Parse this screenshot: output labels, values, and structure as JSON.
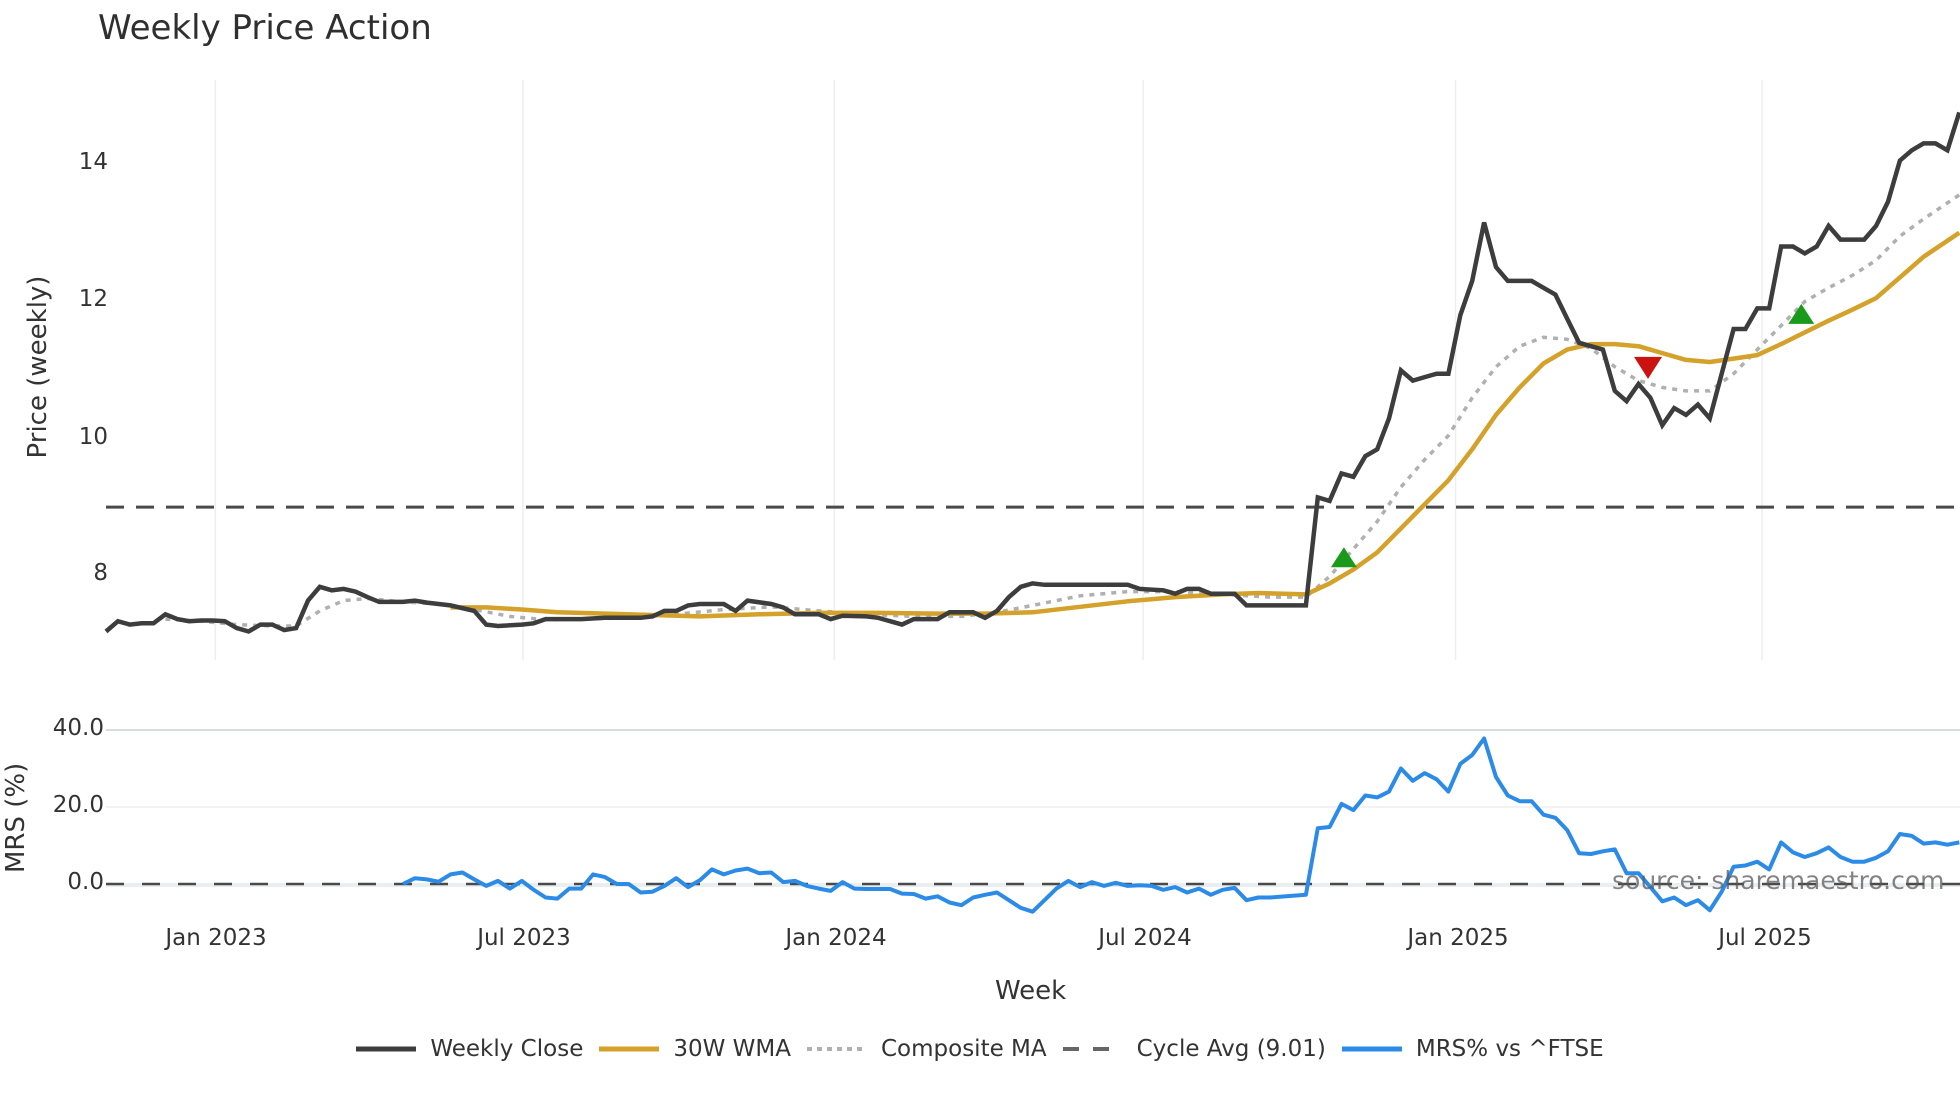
{
  "title": "Weekly Price Action",
  "price_axis": {
    "label": "Price (weekly)",
    "ticks": [
      "8",
      "10",
      "12",
      "14"
    ]
  },
  "mrs_axis": {
    "label": "MRS (%)",
    "ticks": [
      "0.0",
      "20.0",
      "40.0"
    ]
  },
  "x_axis": {
    "label": "Week",
    "ticks": [
      "Jan 2023",
      "Jul 2023",
      "Jan 2024",
      "Jul 2024",
      "Jan 2025",
      "Jul 2025"
    ]
  },
  "source": "source: sharemaestro.com",
  "legend": [
    {
      "label": "Weekly Close",
      "color": "#3d3d3d",
      "style": "solid"
    },
    {
      "label": "30W WMA",
      "color": "#d4a12a",
      "style": "solid"
    },
    {
      "label": "Composite MA",
      "color": "#b0b0b0",
      "style": "dotted"
    },
    {
      "label": "Cycle Avg (9.01)",
      "color": "#555555",
      "style": "dashed"
    },
    {
      "label": "MRS% vs ^FTSE",
      "color": "#2b8be6",
      "style": "solid"
    }
  ],
  "colors": {
    "close": "#3d3d3d",
    "wma": "#d4a12a",
    "composite": "#b0b0b0",
    "cycle": "#4a4a4a",
    "mrs": "#2b8be6",
    "buy": "#1a9a1a",
    "sell": "#cc1111",
    "grid": "#eceef0"
  },
  "chart_data": {
    "type": "line",
    "title": "Weekly Price Action",
    "xlabel": "Week",
    "ylabel": "Price (weekly)",
    "ylabel_secondary": "MRS (%)",
    "x_start_week_index_note": "week 0 ≈ early Nov 2022, weekly steps",
    "ylim": [
      6.9,
      15.0
    ],
    "ylim_secondary": [
      -10,
      42
    ],
    "grid": true,
    "legend_position": "bottom",
    "x_tick_weeks": {
      "Jan 2023": 9.2,
      "Jul 2023": 35.1,
      "Jan 2024": 61.3,
      "Jul 2024": 87.3,
      "Jan 2025": 113.6,
      "Jul 2025": 139.4
    },
    "cycle_avg": 9.01,
    "weekly_close": [
      [
        0,
        7.2
      ],
      [
        1,
        7.35
      ],
      [
        2,
        7.3
      ],
      [
        3,
        7.32
      ],
      [
        4,
        7.32
      ],
      [
        5,
        7.45
      ],
      [
        6,
        7.38
      ],
      [
        7,
        7.35
      ],
      [
        8,
        7.36
      ],
      [
        9,
        7.36
      ],
      [
        10,
        7.35
      ],
      [
        11,
        7.25
      ],
      [
        12,
        7.2
      ],
      [
        13,
        7.3
      ],
      [
        14,
        7.3
      ],
      [
        15,
        7.22
      ],
      [
        16,
        7.25
      ],
      [
        17,
        7.65
      ],
      [
        18,
        7.85
      ],
      [
        19,
        7.8
      ],
      [
        20,
        7.82
      ],
      [
        21,
        7.78
      ],
      [
        22,
        7.7
      ],
      [
        23,
        7.63
      ],
      [
        25,
        7.63
      ],
      [
        26,
        7.65
      ],
      [
        27,
        7.62
      ],
      [
        28,
        7.6
      ],
      [
        29,
        7.58
      ],
      [
        31,
        7.5
      ],
      [
        32,
        7.3
      ],
      [
        33,
        7.28
      ],
      [
        35,
        7.3
      ],
      [
        36,
        7.32
      ],
      [
        37,
        7.38
      ],
      [
        39,
        7.38
      ],
      [
        40,
        7.38
      ],
      [
        42,
        7.4
      ],
      [
        45,
        7.4
      ],
      [
        46,
        7.42
      ],
      [
        47,
        7.5
      ],
      [
        48,
        7.5
      ],
      [
        49,
        7.58
      ],
      [
        50,
        7.6
      ],
      [
        52,
        7.6
      ],
      [
        53,
        7.5
      ],
      [
        54,
        7.65
      ],
      [
        56,
        7.6
      ],
      [
        57,
        7.55
      ],
      [
        58,
        7.45
      ],
      [
        60,
        7.45
      ],
      [
        61,
        7.38
      ],
      [
        62,
        7.43
      ],
      [
        64,
        7.42
      ],
      [
        65,
        7.4
      ],
      [
        67,
        7.3
      ],
      [
        68,
        7.38
      ],
      [
        70,
        7.38
      ],
      [
        71,
        7.48
      ],
      [
        73,
        7.48
      ],
      [
        74,
        7.4
      ],
      [
        75,
        7.5
      ],
      [
        76,
        7.7
      ],
      [
        77,
        7.85
      ],
      [
        78,
        7.9
      ],
      [
        79,
        7.88
      ],
      [
        86,
        7.88
      ],
      [
        87,
        7.82
      ],
      [
        89,
        7.8
      ],
      [
        90,
        7.75
      ],
      [
        91,
        7.82
      ],
      [
        92,
        7.82
      ],
      [
        93,
        7.75
      ],
      [
        95,
        7.75
      ],
      [
        96,
        7.58
      ],
      [
        101,
        7.58
      ],
      [
        102,
        9.15
      ],
      [
        103,
        9.1
      ],
      [
        104,
        9.5
      ],
      [
        105,
        9.45
      ],
      [
        106,
        9.75
      ],
      [
        107,
        9.85
      ],
      [
        108,
        10.3
      ],
      [
        109,
        11.0
      ],
      [
        110,
        10.85
      ],
      [
        111,
        10.9
      ],
      [
        112,
        10.95
      ],
      [
        113,
        10.95
      ],
      [
        114,
        11.8
      ],
      [
        115,
        12.3
      ],
      [
        116,
        13.15
      ],
      [
        117,
        12.5
      ],
      [
        118,
        12.3
      ],
      [
        120,
        12.3
      ],
      [
        121,
        12.2
      ],
      [
        122,
        12.1
      ],
      [
        123,
        11.75
      ],
      [
        124,
        11.4
      ],
      [
        125,
        11.35
      ],
      [
        126,
        11.3
      ],
      [
        127,
        10.7
      ],
      [
        128,
        10.55
      ],
      [
        129,
        10.8
      ],
      [
        130,
        10.6
      ],
      [
        131,
        10.2
      ],
      [
        132,
        10.45
      ],
      [
        133,
        10.35
      ],
      [
        134,
        10.5
      ],
      [
        135,
        10.3
      ],
      [
        136,
        10.95
      ],
      [
        137,
        11.6
      ],
      [
        138,
        11.6
      ],
      [
        139,
        11.9
      ],
      [
        140,
        11.9
      ],
      [
        141,
        12.8
      ],
      [
        142,
        12.8
      ],
      [
        143,
        12.7
      ],
      [
        144,
        12.8
      ],
      [
        145,
        13.1
      ],
      [
        146,
        12.9
      ],
      [
        148,
        12.9
      ],
      [
        149,
        13.1
      ],
      [
        150,
        13.45
      ],
      [
        151,
        14.05
      ],
      [
        152,
        14.2
      ],
      [
        153,
        14.3
      ],
      [
        154,
        14.3
      ],
      [
        155,
        14.2
      ],
      [
        156,
        14.75
      ]
    ],
    "wma_30w": [
      [
        29,
        7.55
      ],
      [
        32,
        7.55
      ],
      [
        35,
        7.52
      ],
      [
        38,
        7.48
      ],
      [
        42,
        7.46
      ],
      [
        46,
        7.44
      ],
      [
        50,
        7.42
      ],
      [
        55,
        7.45
      ],
      [
        60,
        7.47
      ],
      [
        65,
        7.47
      ],
      [
        70,
        7.46
      ],
      [
        74,
        7.46
      ],
      [
        78,
        7.48
      ],
      [
        82,
        7.56
      ],
      [
        86,
        7.64
      ],
      [
        90,
        7.7
      ],
      [
        94,
        7.74
      ],
      [
        97,
        7.76
      ],
      [
        101,
        7.74
      ],
      [
        103,
        7.9
      ],
      [
        105,
        8.1
      ],
      [
        107,
        8.35
      ],
      [
        109,
        8.7
      ],
      [
        111,
        9.05
      ],
      [
        113,
        9.4
      ],
      [
        115,
        9.85
      ],
      [
        117,
        10.35
      ],
      [
        119,
        10.75
      ],
      [
        121,
        11.1
      ],
      [
        123,
        11.3
      ],
      [
        125,
        11.38
      ],
      [
        127,
        11.38
      ],
      [
        129,
        11.35
      ],
      [
        131,
        11.25
      ],
      [
        133,
        11.15
      ],
      [
        135,
        11.12
      ],
      [
        137,
        11.17
      ],
      [
        139,
        11.22
      ],
      [
        141,
        11.38
      ],
      [
        143,
        11.55
      ],
      [
        145,
        11.72
      ],
      [
        147,
        11.88
      ],
      [
        149,
        12.05
      ],
      [
        151,
        12.35
      ],
      [
        153,
        12.65
      ],
      [
        156,
        13.0
      ]
    ],
    "composite_ma": [
      [
        5,
        7.38
      ],
      [
        8,
        7.35
      ],
      [
        11,
        7.3
      ],
      [
        14,
        7.28
      ],
      [
        16,
        7.28
      ],
      [
        18,
        7.5
      ],
      [
        20,
        7.65
      ],
      [
        22,
        7.68
      ],
      [
        25,
        7.63
      ],
      [
        28,
        7.6
      ],
      [
        31,
        7.52
      ],
      [
        34,
        7.42
      ],
      [
        37,
        7.37
      ],
      [
        40,
        7.38
      ],
      [
        44,
        7.4
      ],
      [
        48,
        7.45
      ],
      [
        52,
        7.52
      ],
      [
        56,
        7.56
      ],
      [
        60,
        7.5
      ],
      [
        64,
        7.45
      ],
      [
        68,
        7.42
      ],
      [
        72,
        7.42
      ],
      [
        75,
        7.48
      ],
      [
        78,
        7.58
      ],
      [
        82,
        7.72
      ],
      [
        86,
        7.78
      ],
      [
        90,
        7.78
      ],
      [
        94,
        7.74
      ],
      [
        98,
        7.7
      ],
      [
        101,
        7.7
      ],
      [
        103,
        8.0
      ],
      [
        105,
        8.4
      ],
      [
        107,
        8.8
      ],
      [
        109,
        9.3
      ],
      [
        111,
        9.7
      ],
      [
        113,
        10.05
      ],
      [
        115,
        10.6
      ],
      [
        117,
        11.05
      ],
      [
        119,
        11.35
      ],
      [
        121,
        11.48
      ],
      [
        123,
        11.45
      ],
      [
        125,
        11.32
      ],
      [
        127,
        11.05
      ],
      [
        129,
        10.85
      ],
      [
        131,
        10.75
      ],
      [
        133,
        10.7
      ],
      [
        135,
        10.7
      ],
      [
        137,
        10.95
      ],
      [
        139,
        11.3
      ],
      [
        141,
        11.65
      ],
      [
        143,
        12.0
      ],
      [
        145,
        12.2
      ],
      [
        147,
        12.38
      ],
      [
        149,
        12.6
      ],
      [
        151,
        12.95
      ],
      [
        153,
        13.2
      ],
      [
        156,
        13.55
      ]
    ],
    "mrs_pct": [
      [
        25,
        0
      ],
      [
        26,
        1.5
      ],
      [
        27,
        1.2
      ],
      [
        28,
        0.6
      ],
      [
        29,
        2.5
      ],
      [
        30,
        3.0
      ],
      [
        31,
        1.2
      ],
      [
        32,
        -0.5
      ],
      [
        33,
        0.8
      ],
      [
        34,
        -1.2
      ],
      [
        35,
        0.8
      ],
      [
        36,
        -1.5
      ],
      [
        37,
        -3.5
      ],
      [
        38,
        -3.8
      ],
      [
        39,
        -1.2
      ],
      [
        40,
        -1.2
      ],
      [
        41,
        2.5
      ],
      [
        42,
        1.8
      ],
      [
        43,
        0
      ],
      [
        44,
        0
      ],
      [
        45,
        -2.2
      ],
      [
        46,
        -2.0
      ],
      [
        47,
        -0.5
      ],
      [
        48,
        1.5
      ],
      [
        49,
        -0.8
      ],
      [
        50,
        1.0
      ],
      [
        51,
        3.8
      ],
      [
        52,
        2.5
      ],
      [
        53,
        3.5
      ],
      [
        54,
        4.0
      ],
      [
        55,
        2.8
      ],
      [
        56,
        3.0
      ],
      [
        57,
        0.5
      ],
      [
        58,
        0.8
      ],
      [
        59,
        -0.5
      ],
      [
        60,
        -1.2
      ],
      [
        61,
        -1.8
      ],
      [
        62,
        0.5
      ],
      [
        63,
        -1.2
      ],
      [
        64,
        -1.3
      ],
      [
        66,
        -1.3
      ],
      [
        67,
        -2.5
      ],
      [
        68,
        -2.6
      ],
      [
        69,
        -3.8
      ],
      [
        70,
        -3.2
      ],
      [
        71,
        -4.8
      ],
      [
        72,
        -5.5
      ],
      [
        73,
        -3.5
      ],
      [
        74,
        -2.8
      ],
      [
        75,
        -2.2
      ],
      [
        76,
        -4.2
      ],
      [
        77,
        -6.2
      ],
      [
        78,
        -7.2
      ],
      [
        79,
        -4.2
      ],
      [
        80,
        -1.2
      ],
      [
        81,
        0.8
      ],
      [
        82,
        -0.8
      ],
      [
        83,
        0.5
      ],
      [
        84,
        -0.5
      ],
      [
        85,
        0.3
      ],
      [
        86,
        -0.5
      ],
      [
        87,
        -0.3
      ],
      [
        88,
        -0.5
      ],
      [
        89,
        -1.5
      ],
      [
        90,
        -0.8
      ],
      [
        91,
        -2.2
      ],
      [
        92,
        -1.2
      ],
      [
        93,
        -2.8
      ],
      [
        94,
        -1.5
      ],
      [
        95,
        -1.0
      ],
      [
        96,
        -4.2
      ],
      [
        97,
        -3.5
      ],
      [
        98,
        -3.5
      ],
      [
        101,
        -2.8
      ],
      [
        102,
        14.5
      ],
      [
        103,
        14.8
      ],
      [
        104,
        20.8
      ],
      [
        105,
        19.2
      ],
      [
        106,
        23.0
      ],
      [
        107,
        22.5
      ],
      [
        108,
        24.0
      ],
      [
        109,
        30.0
      ],
      [
        110,
        26.8
      ],
      [
        111,
        28.8
      ],
      [
        112,
        27.2
      ],
      [
        113,
        24.0
      ],
      [
        114,
        31.2
      ],
      [
        115,
        33.5
      ],
      [
        116,
        37.8
      ],
      [
        117,
        27.8
      ],
      [
        118,
        23.0
      ],
      [
        119,
        21.5
      ],
      [
        120,
        21.5
      ],
      [
        121,
        18.0
      ],
      [
        122,
        17.2
      ],
      [
        123,
        14.0
      ],
      [
        124,
        8.0
      ],
      [
        125,
        7.8
      ],
      [
        126,
        8.5
      ],
      [
        127,
        9.0
      ],
      [
        128,
        2.8
      ],
      [
        129,
        2.8
      ],
      [
        130,
        -0.8
      ],
      [
        131,
        -4.5
      ],
      [
        132,
        -3.5
      ],
      [
        133,
        -5.5
      ],
      [
        134,
        -4.2
      ],
      [
        135,
        -6.8
      ],
      [
        136,
        -2.0
      ],
      [
        137,
        4.5
      ],
      [
        138,
        4.8
      ],
      [
        139,
        5.8
      ],
      [
        140,
        3.8
      ],
      [
        141,
        10.8
      ],
      [
        142,
        8.2
      ],
      [
        143,
        7.0
      ],
      [
        144,
        8.0
      ],
      [
        145,
        9.5
      ],
      [
        146,
        7.0
      ],
      [
        147,
        5.8
      ],
      [
        148,
        5.8
      ],
      [
        149,
        6.8
      ],
      [
        150,
        8.5
      ],
      [
        151,
        13.0
      ],
      [
        152,
        12.5
      ],
      [
        153,
        10.5
      ],
      [
        154,
        10.8
      ],
      [
        155,
        10.2
      ],
      [
        156,
        10.8
      ]
    ],
    "signals": [
      {
        "type": "buy",
        "week": 104.2,
        "price": 8.28
      },
      {
        "type": "sell",
        "week": 129.8,
        "price": 11.05
      },
      {
        "type": "buy",
        "week": 142.7,
        "price": 11.82
      }
    ]
  }
}
